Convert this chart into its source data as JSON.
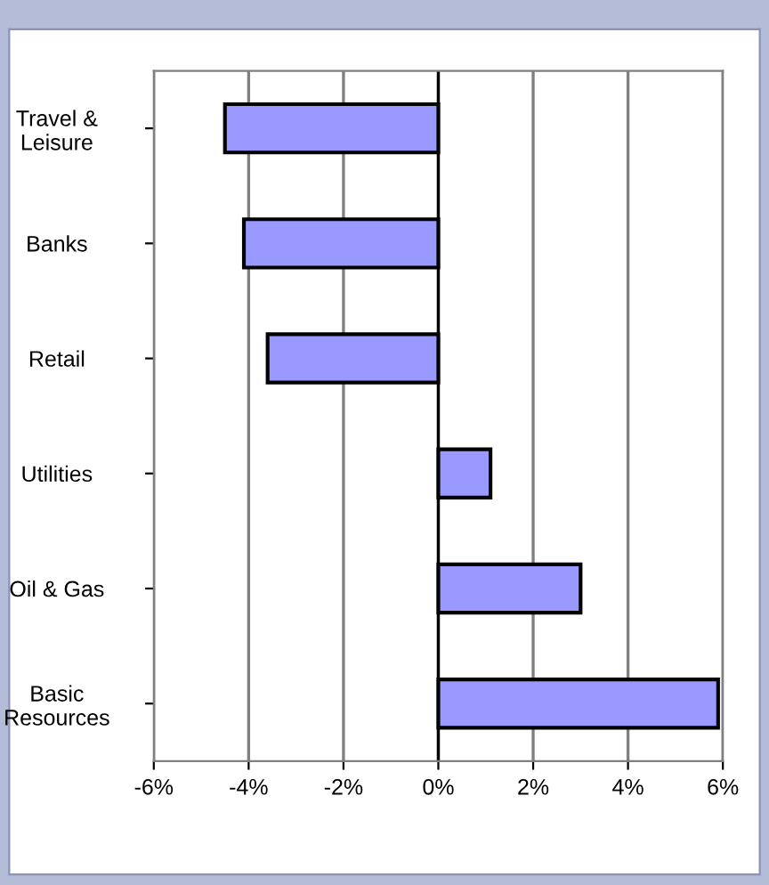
{
  "chart_data": {
    "type": "bar",
    "orientation": "horizontal",
    "categories": [
      "Travel &\nLeisure",
      "Banks",
      "Retail",
      "Utilities",
      "Oil & Gas",
      "Basic\nResources"
    ],
    "values": [
      -4.5,
      -4.1,
      -3.6,
      1.1,
      3.0,
      5.9
    ],
    "color": "#9999ff",
    "xlim": [
      -6,
      6
    ],
    "xticks": [
      {
        "value": -6,
        "label": "-6%"
      },
      {
        "value": -4,
        "label": "-4%"
      },
      {
        "value": -2,
        "label": "-2%"
      },
      {
        "value": 0,
        "label": "0%"
      },
      {
        "value": 2,
        "label": "2%"
      },
      {
        "value": 4,
        "label": "4%"
      },
      {
        "value": 6,
        "label": "6%"
      }
    ],
    "grid": "x",
    "legend": false
  }
}
